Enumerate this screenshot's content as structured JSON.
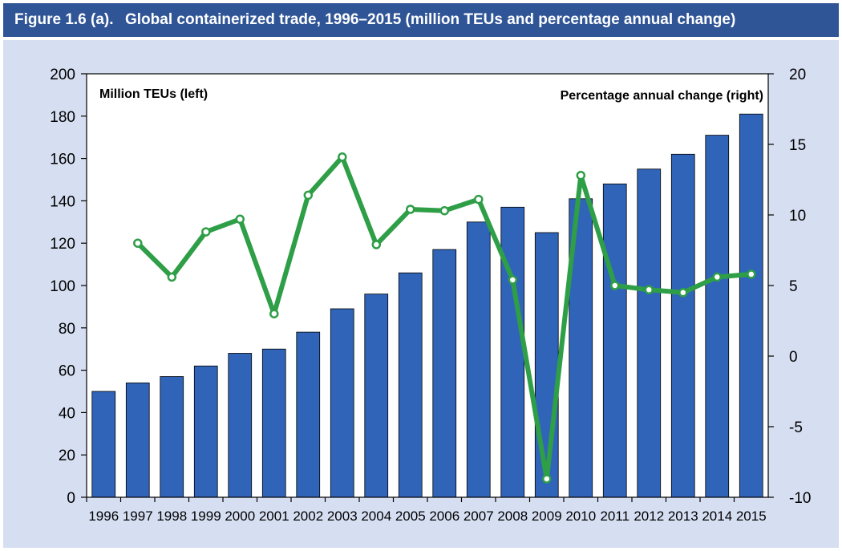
{
  "header": {
    "figure_number": "Figure 1.6 (a).",
    "title": "Global containerized trade, 1996–2015 (million TEUs and percentage annual change)"
  },
  "colors": {
    "header_bg": "#2f5597",
    "panel_bg": "#d6def2",
    "bar_fill": "#3064b8",
    "line": "#2e9e47"
  },
  "chart_data": {
    "type": "bar+line",
    "categories": [
      "1996",
      "1997",
      "1998",
      "1999",
      "2000",
      "2001",
      "2002",
      "2003",
      "2004",
      "2005",
      "2006",
      "2007",
      "2008",
      "2009",
      "2010",
      "2011",
      "2012",
      "2013",
      "2014",
      "2015"
    ],
    "series": [
      {
        "name": "Million TEUs (left)",
        "type": "bar",
        "axis": "left",
        "values": [
          50,
          54,
          57,
          62,
          68,
          70,
          78,
          89,
          96,
          106,
          117,
          130,
          137,
          125,
          141,
          148,
          155,
          162,
          171,
          181
        ]
      },
      {
        "name": "Percentage annual change (right)",
        "type": "line",
        "axis": "right",
        "values": [
          null,
          8.0,
          5.6,
          8.8,
          9.7,
          3.0,
          11.4,
          14.1,
          7.9,
          10.4,
          10.3,
          11.1,
          5.4,
          -8.7,
          12.8,
          5.0,
          4.7,
          4.5,
          5.6,
          5.8
        ]
      }
    ],
    "left_axis": {
      "ticks": [
        "0",
        "20",
        "40",
        "60",
        "80",
        "100",
        "120",
        "140",
        "160",
        "180",
        "200"
      ],
      "ylim": [
        0,
        200
      ]
    },
    "right_axis": {
      "ticks": [
        "-10",
        "-5",
        "0",
        "5",
        "10",
        "15",
        "20"
      ],
      "ylim": [
        -10,
        20
      ]
    },
    "left_label": "Million TEUs (left)",
    "right_label": "Percentage annual change (right)",
    "grid": false
  }
}
